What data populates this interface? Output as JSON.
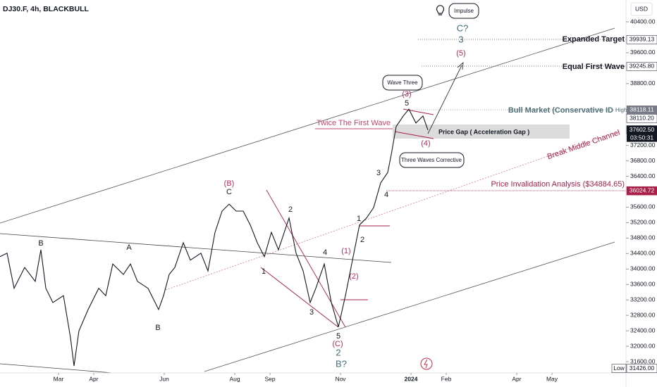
{
  "header": {
    "symbol": "DJ30.F, 4h, BLACKBULL",
    "currency": "USD",
    "countdown": "03:50:31",
    "low_label": "Low"
  },
  "chart_data": {
    "type": "line",
    "color": "#131722",
    "x": [
      1.34,
      1.54,
      1.74,
      2.04,
      2.34,
      2.5,
      2.64,
      2.84,
      3.14,
      3.34,
      3.44,
      3.58,
      3.84,
      4.14,
      4.34,
      4.54,
      4.84,
      5.04,
      5.24,
      5.54,
      5.84,
      5.98,
      6.14,
      6.3,
      6.54,
      6.74,
      7.04,
      7.24,
      7.44,
      7.64,
      7.84,
      8.04,
      8.24,
      8.44,
      8.64,
      8.84,
      9.04,
      9.24,
      9.54,
      9.74,
      9.94,
      10.14,
      10.3,
      10.54,
      10.74,
      10.94,
      11.14,
      11.34,
      11.54,
      11.74,
      11.94,
      12.14,
      12.34,
      12.44,
      12.58,
      12.78,
      12.94,
      13.14,
      13.34,
      13.48
    ],
    "values": [
      34320,
      34410,
      33500,
      34040,
      33680,
      34500,
      33500,
      33130,
      33310,
      32220,
      31490,
      32400,
      32950,
      33500,
      33310,
      34130,
      33860,
      34130,
      33680,
      33500,
      32950,
      33310,
      33860,
      34040,
      34680,
      34230,
      34410,
      33950,
      34950,
      35500,
      35680,
      35500,
      35500,
      35140,
      34680,
      34320,
      34950,
      34500,
      35320,
      34410,
      33950,
      33130,
      33500,
      34130,
      33130,
      32500,
      33310,
      34230,
      35140,
      35320,
      35590,
      36230,
      36500,
      36960,
      37690,
      37960,
      38140,
      37780,
      37960,
      37600
    ],
    "xlim": [
      1.34,
      19.1
    ],
    "xticks": [
      {
        "value": 3,
        "label": "Mar"
      },
      {
        "value": 4,
        "label": "Apr"
      },
      {
        "value": 6,
        "label": "Jun"
      },
      {
        "value": 8,
        "label": "Aug"
      },
      {
        "value": 9,
        "label": "Sep"
      },
      {
        "value": 11,
        "label": "Nov"
      },
      {
        "value": 13,
        "label": "2024"
      },
      {
        "value": 14,
        "label": "Feb"
      },
      {
        "value": 16,
        "label": "Apr"
      },
      {
        "value": 17,
        "label": "May"
      }
    ],
    "ylim": [
      31309,
      40965
    ],
    "yticks": [
      {
        "value": 40400,
        "label": "40400.00"
      },
      {
        "value": 39600,
        "label": "39600.00"
      },
      {
        "value": 38800,
        "label": "38800.00"
      },
      {
        "value": 37200,
        "label": "37200.00"
      },
      {
        "value": 36800,
        "label": "36800.00"
      },
      {
        "value": 36400,
        "label": "36400.00"
      },
      {
        "value": 35600,
        "label": "35600.00"
      },
      {
        "value": 35200,
        "label": "35200.00"
      },
      {
        "value": 34800,
        "label": "34800.00"
      },
      {
        "value": 34400,
        "label": "34400.00"
      },
      {
        "value": 34000,
        "label": "34000.00"
      },
      {
        "value": 33600,
        "label": "33600.00"
      },
      {
        "value": 33200,
        "label": "33200.00"
      },
      {
        "value": 32800,
        "label": "32800.00"
      },
      {
        "value": 32400,
        "label": "32400.00"
      },
      {
        "value": 32000,
        "label": "32000.00"
      },
      {
        "value": 31600,
        "label": "31600.00"
      }
    ],
    "grid": false,
    "price_tags": [
      {
        "value": 39939.13,
        "label": "39939.13",
        "background": "#ffffff",
        "color": "#131722"
      },
      {
        "value": 39245.8,
        "label": "39245.80",
        "background": "#ffffff",
        "color": "#131722"
      },
      {
        "value": 38118.11,
        "label": "38118.11",
        "background": "#787b86",
        "color": "#ffffff"
      },
      {
        "value": 38110.2,
        "label": "38110.20",
        "background": "#ffffff",
        "color": "#131722"
      },
      {
        "value": 37602.5,
        "label": "37602.50",
        "background": "#131722",
        "color": "#ffffff"
      },
      {
        "value": 36024.72,
        "label": "36024.72",
        "background": "#a8204a",
        "color": "#ffffff"
      },
      {
        "value": 31426,
        "label": "31426.00",
        "background": "#ffffff",
        "color": "#131722"
      }
    ]
  },
  "annotations": {
    "impulse": "Impulse",
    "wave_three": "Wave Three",
    "expanded_target": "Expanded Target",
    "equal_first_wave": "Equal First Wave",
    "bull_market": "Bull Market (Conservative ID",
    "high": "High",
    "twice": "Twice The First Wave",
    "price_gap": "Price Gap ( Acceleration Gap )",
    "break_middle": "Break Middle Channel",
    "three_waves": "Three Waves Corrective",
    "invalidation": "Price Invalidation Analysis ($34884.65)"
  },
  "wave_labels": [
    "B",
    "A",
    "B",
    "(B)",
    "C",
    "1",
    "2",
    "3",
    "4",
    "5",
    "(C)",
    "2",
    "B?",
    "(1)",
    "(2)",
    "1",
    "2",
    "3",
    "4",
    "(3)",
    "5",
    "(4)",
    "(5)",
    "3",
    "C?"
  ]
}
